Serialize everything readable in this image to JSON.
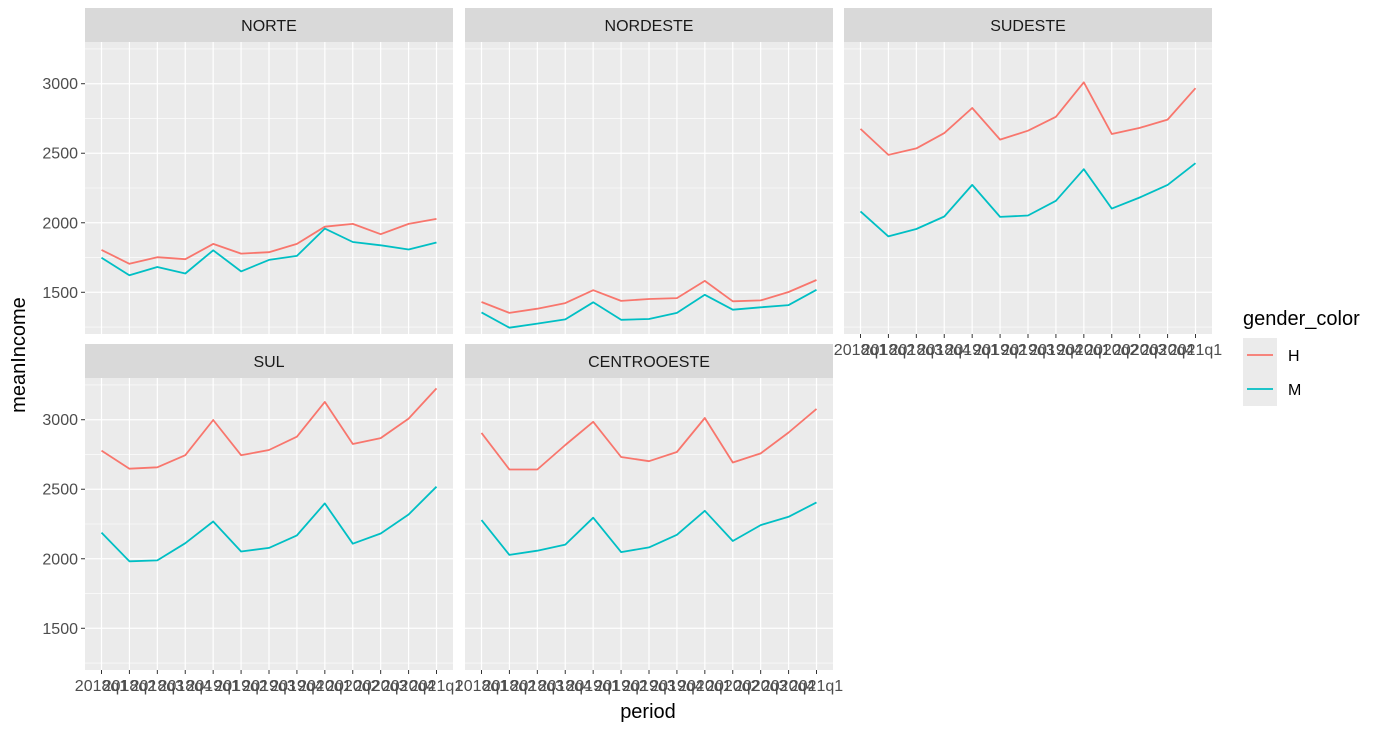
{
  "chart_data": {
    "type": "line",
    "xlabel": "period",
    "ylabel": "meanIncome",
    "ylim": [
      1200,
      3300
    ],
    "yticks": [
      1500,
      2000,
      2500,
      3000
    ],
    "x": [
      "2018q1",
      "2018q2",
      "2018q3",
      "2018q4",
      "2019q1",
      "2019q2",
      "2019q3",
      "2019q4",
      "2020q1",
      "2020q2",
      "2020q3",
      "2020q4",
      "2021q1"
    ],
    "grid": true,
    "legend": {
      "title": "gender_color",
      "position": "right",
      "entries": [
        {
          "label": "H",
          "color": "#F8766D"
        },
        {
          "label": "M",
          "color": "#00BFC4"
        }
      ]
    },
    "panels": [
      {
        "title": "NORTE",
        "series": [
          {
            "name": "H",
            "color": "#F8766D",
            "values": [
              1805,
              1705,
              1752,
              1738,
              1848,
              1778,
              1788,
              1848,
              1972,
              1992,
              1918,
              1992,
              2028
            ]
          },
          {
            "name": "M",
            "color": "#00BFC4",
            "values": [
              1748,
              1622,
              1682,
              1635,
              1802,
              1650,
              1733,
              1762,
              1958,
              1862,
              1838,
              1808,
              1858
            ]
          }
        ]
      },
      {
        "title": "NORDESTE",
        "series": [
          {
            "name": "H",
            "color": "#F8766D",
            "values": [
              1430,
              1352,
              1382,
              1422,
              1515,
              1438,
              1452,
              1458,
              1582,
              1435,
              1442,
              1502,
              1588
            ]
          },
          {
            "name": "M",
            "color": "#00BFC4",
            "values": [
              1355,
              1245,
              1275,
              1305,
              1428,
              1302,
              1308,
              1352,
              1482,
              1375,
              1392,
              1408,
              1518
            ]
          }
        ]
      },
      {
        "title": "SUDESTE",
        "series": [
          {
            "name": "H",
            "color": "#F8766D",
            "values": [
              2675,
              2488,
              2535,
              2645,
              2825,
              2598,
              2662,
              2762,
              3010,
              2638,
              2682,
              2742,
              2968
            ]
          },
          {
            "name": "M",
            "color": "#00BFC4",
            "values": [
              2082,
              1902,
              1955,
              2045,
              2272,
              2042,
              2052,
              2158,
              2385,
              2102,
              2182,
              2272,
              2428
            ]
          }
        ]
      },
      {
        "title": "SUL",
        "series": [
          {
            "name": "H",
            "color": "#F8766D",
            "values": [
              2778,
              2648,
              2658,
              2745,
              2998,
              2745,
              2782,
              2878,
              3128,
              2825,
              2868,
              3008,
              3225
            ]
          },
          {
            "name": "M",
            "color": "#00BFC4",
            "values": [
              2188,
              1982,
              1988,
              2112,
              2268,
              2052,
              2078,
              2168,
              2398,
              2108,
              2182,
              2318,
              2518
            ]
          }
        ]
      },
      {
        "title": "CENTROOESTE",
        "series": [
          {
            "name": "H",
            "color": "#F8766D",
            "values": [
              2905,
              2642,
              2642,
              2818,
              2985,
              2732,
              2702,
              2768,
              3012,
              2692,
              2758,
              2908,
              3078
            ]
          },
          {
            "name": "M",
            "color": "#00BFC4",
            "values": [
              2278,
              2028,
              2058,
              2102,
              2295,
              2048,
              2082,
              2172,
              2345,
              2128,
              2242,
              2302,
              2405
            ]
          }
        ]
      }
    ]
  }
}
